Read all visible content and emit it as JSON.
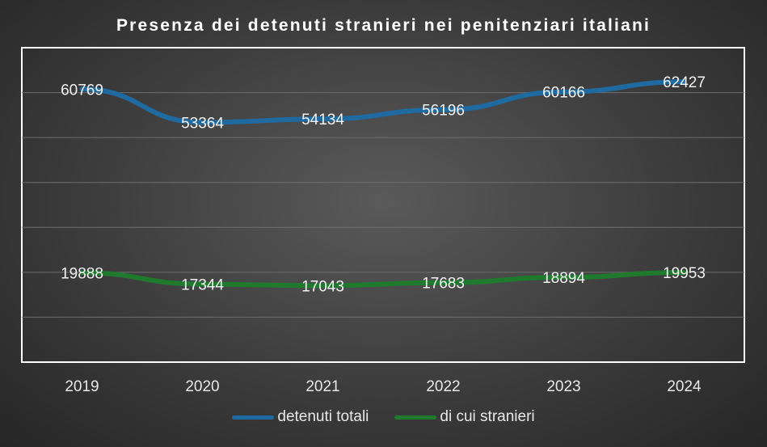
{
  "chart_data": {
    "type": "line",
    "title": "Presenza dei detenuti stranieri nei penitenziari italiani",
    "categories": [
      "2019",
      "2020",
      "2021",
      "2022",
      "2023",
      "2024"
    ],
    "series": [
      {
        "name": "detenuti totali",
        "color": "#1f6aa0",
        "values": [
          60769,
          53364,
          54134,
          56196,
          60166,
          62427
        ]
      },
      {
        "name": "di cui stranieri",
        "color": "#1f7a2e",
        "values": [
          19888,
          17344,
          17043,
          17683,
          18894,
          19953
        ]
      }
    ],
    "ylim": [
      0,
      70000
    ],
    "grid": true,
    "legend": "bottom"
  }
}
